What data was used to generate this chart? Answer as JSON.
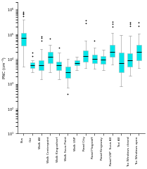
{
  "title": "",
  "ylabel": "PNC (cm⁻³)",
  "categories": [
    "Bus",
    "Car",
    "Walk All",
    "Walk Centerpoint",
    "Walk Kingswharf",
    "Walk Suva Point",
    "Walk USP",
    "Road City",
    "Road Flagstaff",
    "Road Kingsway",
    "Road USP  Suva All",
    "Taxi All",
    "Tax Windows closed",
    "Tax Windows open"
  ],
  "boxes": [
    {
      "q1": 35000,
      "median": 70000,
      "q3": 110000,
      "whislo": 5000,
      "whishi": 400000,
      "fliers_high": [
        700000,
        800000,
        550000,
        650000
      ],
      "fliers_low": []
    },
    {
      "q1": 4500,
      "median": 5500,
      "q3": 7500,
      "whislo": 3000,
      "whishi": 9000,
      "fliers_high": [
        13000,
        18000
      ],
      "fliers_low": []
    },
    {
      "q1": 3500,
      "median": 5500,
      "q3": 9000,
      "whislo": 1500,
      "whishi": 25000,
      "fliers_high": [
        55000,
        70000,
        80000
      ],
      "fliers_low": []
    },
    {
      "q1": 7000,
      "median": 12000,
      "q3": 19000,
      "whislo": 3000,
      "whishi": 38000,
      "fliers_high": [
        65000
      ],
      "fliers_low": []
    },
    {
      "q1": 3500,
      "median": 5500,
      "q3": 8000,
      "whislo": 1500,
      "whishi": 18000,
      "fliers_high": [
        28000
      ],
      "fliers_low": []
    },
    {
      "q1": 1800,
      "median": 3000,
      "q3": 5000,
      "whislo": 700,
      "whishi": 10000,
      "fliers_high": [],
      "fliers_low": [
        400
      ]
    },
    {
      "q1": 5500,
      "median": 7000,
      "q3": 9000,
      "whislo": 3500,
      "whishi": 12000,
      "fliers_high": [],
      "fliers_low": []
    },
    {
      "q1": 8000,
      "median": 13000,
      "q3": 22000,
      "whislo": 4500,
      "whishi": 55000,
      "fliers_high": [
        280000,
        370000
      ],
      "fliers_low": []
    },
    {
      "q1": 7000,
      "median": 10000,
      "q3": 15000,
      "whislo": 4000,
      "whishi": 28000,
      "fliers_high": [
        55000
      ],
      "fliers_low": []
    },
    {
      "q1": 6500,
      "median": 9500,
      "q3": 13000,
      "whislo": 3500,
      "whishi": 24000,
      "fliers_high": [],
      "fliers_low": []
    },
    {
      "q1": 12000,
      "median": 20000,
      "q3": 38000,
      "whislo": 6000,
      "whishi": 110000,
      "fliers_high": [
        200000,
        260000,
        310000
      ],
      "fliers_low": []
    },
    {
      "q1": 3000,
      "median": 7000,
      "q3": 18000,
      "whislo": 800,
      "whishi": 95000,
      "fliers_high": [],
      "fliers_low": []
    },
    {
      "q1": 5000,
      "median": 9000,
      "q3": 17000,
      "whislo": 2200,
      "whishi": 85000,
      "fliers_high": [
        210000,
        260000,
        300000
      ],
      "fliers_low": []
    },
    {
      "q1": 9000,
      "median": 20000,
      "q3": 38000,
      "whislo": 4500,
      "whishi": 105000,
      "fliers_high": [
        210000,
        300000
      ],
      "fliers_low": []
    }
  ],
  "box_color": "#00e5e8",
  "box_edge_color": "#a0c0c0",
  "median_color": "#000000",
  "whisker_color": "#909090",
  "flier_color": "#909090",
  "ylim_low": 10,
  "ylim_high": 2000000,
  "yticks": [
    10,
    100,
    1000,
    10000,
    100000,
    1000000
  ],
  "figsize": [
    2.09,
    2.41
  ],
  "dpi": 100
}
